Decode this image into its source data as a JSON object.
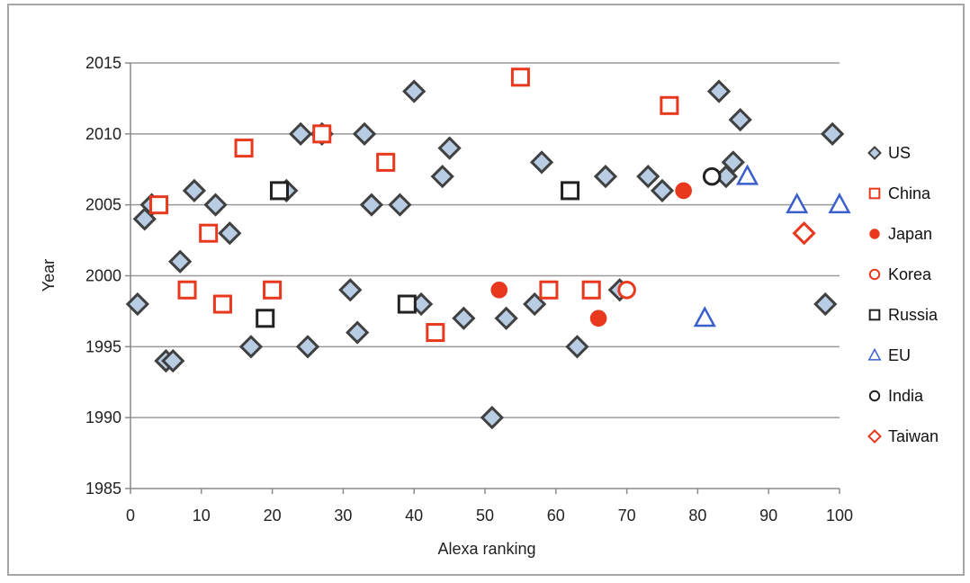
{
  "chart_data": {
    "type": "scatter",
    "title": "",
    "xlabel": "Alexa ranking",
    "ylabel": "Year",
    "xlim": [
      0,
      100
    ],
    "ylim": [
      1985,
      2015
    ],
    "xticks": [
      0,
      10,
      20,
      30,
      40,
      50,
      60,
      70,
      80,
      90,
      100
    ],
    "yticks": [
      1985,
      1990,
      1995,
      2000,
      2005,
      2010,
      2015
    ],
    "grid": "horizontal",
    "legend_position": "right",
    "series": [
      {
        "name": "US",
        "marker": "diamond",
        "color": "#404040",
        "fill": "#b8cce4",
        "points": [
          [
            1,
            1998
          ],
          [
            2,
            2004
          ],
          [
            3,
            2005
          ],
          [
            5,
            1994
          ],
          [
            6,
            1994
          ],
          [
            7,
            2001
          ],
          [
            9,
            2006
          ],
          [
            12,
            2005
          ],
          [
            14,
            2003
          ],
          [
            17,
            1995
          ],
          [
            22,
            2006
          ],
          [
            24,
            2010
          ],
          [
            25,
            1995
          ],
          [
            27,
            2010
          ],
          [
            31,
            1999
          ],
          [
            32,
            1996
          ],
          [
            33,
            2010
          ],
          [
            34,
            2005
          ],
          [
            38,
            2005
          ],
          [
            40,
            2013
          ],
          [
            41,
            1998
          ],
          [
            44,
            2007
          ],
          [
            45,
            2009
          ],
          [
            47,
            1997
          ],
          [
            51,
            1990
          ],
          [
            53,
            1997
          ],
          [
            57,
            1998
          ],
          [
            58,
            2008
          ],
          [
            63,
            1995
          ],
          [
            67,
            2007
          ],
          [
            69,
            1999
          ],
          [
            73,
            2007
          ],
          [
            75,
            2006
          ],
          [
            83,
            2013
          ],
          [
            84,
            2007
          ],
          [
            85,
            2008
          ],
          [
            86,
            2011
          ],
          [
            98,
            1998
          ],
          [
            99,
            2010
          ]
        ]
      },
      {
        "name": "China",
        "marker": "square",
        "color": "#e8381e",
        "fill": "none",
        "points": [
          [
            4,
            2005
          ],
          [
            8,
            1999
          ],
          [
            11,
            2003
          ],
          [
            13,
            1998
          ],
          [
            16,
            2009
          ],
          [
            20,
            1999
          ],
          [
            27,
            2010
          ],
          [
            36,
            2008
          ],
          [
            43,
            1996
          ],
          [
            55,
            2014
          ],
          [
            59,
            1999
          ],
          [
            65,
            1999
          ],
          [
            76,
            2012
          ]
        ]
      },
      {
        "name": "Japan",
        "marker": "circle-filled",
        "color": "#e8381e",
        "fill": "#e8381e",
        "points": [
          [
            52,
            1999
          ],
          [
            66,
            1997
          ],
          [
            78,
            2006
          ]
        ]
      },
      {
        "name": "Korea",
        "marker": "circle",
        "color": "#e8381e",
        "fill": "none",
        "points": [
          [
            70,
            1999
          ]
        ]
      },
      {
        "name": "Russia",
        "marker": "square",
        "color": "#222222",
        "fill": "none",
        "points": [
          [
            19,
            1997
          ],
          [
            21,
            2006
          ],
          [
            39,
            1998
          ],
          [
            62,
            2006
          ]
        ]
      },
      {
        "name": "EU",
        "marker": "triangle",
        "color": "#3a5fcd",
        "fill": "none",
        "points": [
          [
            81,
            1997
          ],
          [
            87,
            2007
          ],
          [
            94,
            2005
          ],
          [
            100,
            2005
          ]
        ]
      },
      {
        "name": "India",
        "marker": "circle",
        "color": "#222222",
        "fill": "none",
        "points": [
          [
            82,
            2007
          ]
        ]
      },
      {
        "name": "Taiwan",
        "marker": "diamond",
        "color": "#e8381e",
        "fill": "none",
        "points": [
          [
            95,
            2003
          ]
        ]
      }
    ]
  }
}
